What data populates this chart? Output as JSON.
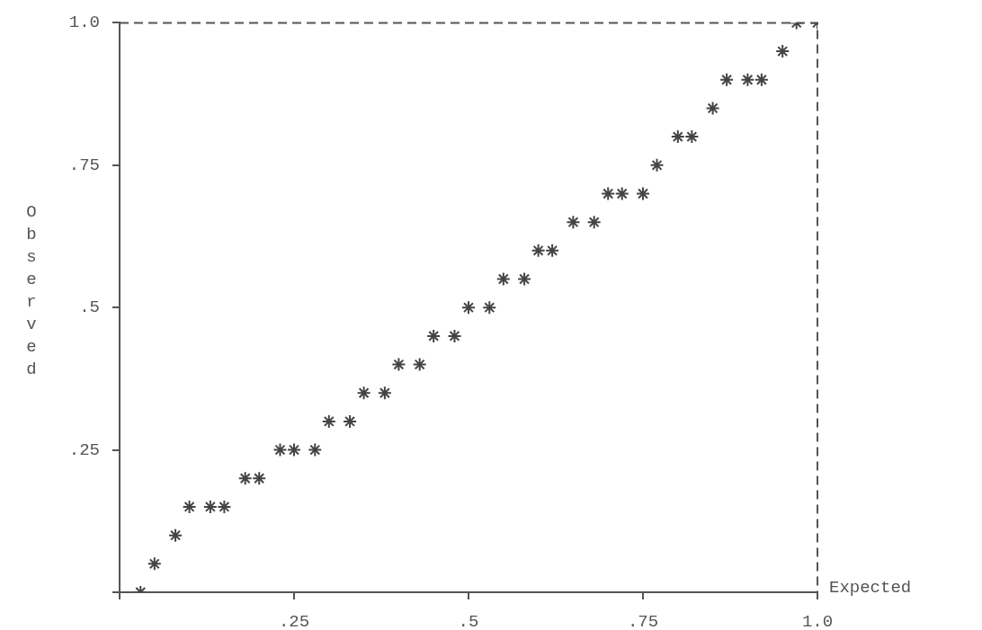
{
  "chart_data": {
    "type": "scatter",
    "xlabel": "Expected",
    "ylabel": "Observed",
    "marker": "cross",
    "grid": false,
    "legend": false,
    "xlim": [
      0,
      1
    ],
    "ylim": [
      0,
      1
    ],
    "xticks": [
      {
        "value": 0,
        "label": null
      },
      {
        "value": 0.25,
        "label": ".25"
      },
      {
        "value": 0.5,
        "label": ".5"
      },
      {
        "value": 0.75,
        "label": ".75"
      },
      {
        "value": 1,
        "label": "1.0"
      }
    ],
    "yticks": [
      {
        "value": 0,
        "label": null
      },
      {
        "value": 0.25,
        "label": ".25"
      },
      {
        "value": 0.5,
        "label": ".5"
      },
      {
        "value": 0.75,
        "label": ".75"
      },
      {
        "value": 1,
        "label": "1.0"
      }
    ],
    "series": [
      {
        "color": "#444444",
        "x": [
          0.03,
          0.05,
          0.08,
          0.1,
          0.13,
          0.15,
          0.18,
          0.2,
          0.23,
          0.25,
          0.28,
          0.3,
          0.33,
          0.35,
          0.38,
          0.4,
          0.43,
          0.45,
          0.48,
          0.5,
          0.53,
          0.55,
          0.58,
          0.6,
          0.62,
          0.65,
          0.68,
          0.7,
          0.72,
          0.75,
          0.77,
          0.8,
          0.82,
          0.85,
          0.87,
          0.9,
          0.92,
          0.95,
          0.97,
          1.0
        ],
        "values": [
          0,
          0.05,
          0.1,
          0.15,
          0.15,
          0.15,
          0.2,
          0.2,
          0.25,
          0.25,
          0.25,
          0.3,
          0.3,
          0.35,
          0.35,
          0.4,
          0.4,
          0.45,
          0.45,
          0.5,
          0.5,
          0.55,
          0.55,
          0.6,
          0.6,
          0.65,
          0.65,
          0.7,
          0.7,
          0.7,
          0.75,
          0.8,
          0.8,
          0.85,
          0.9,
          0.9,
          0.9,
          0.95,
          1.0,
          1.0
        ]
      }
    ]
  }
}
